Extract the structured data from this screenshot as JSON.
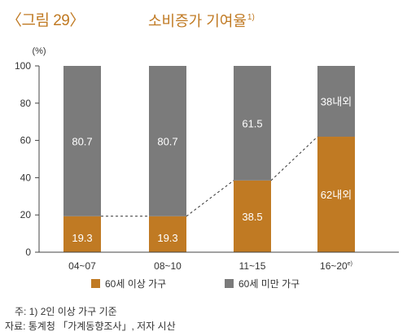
{
  "header": {
    "figure_label": "〈그림 29〉",
    "title": "소비증가 기여율",
    "title_sup": "1)"
  },
  "chart_data": {
    "type": "bar",
    "stacked": true,
    "categories": [
      "04~07",
      "08~10",
      "11~15",
      "16~20"
    ],
    "category_sup": [
      "",
      "",
      "",
      "e)"
    ],
    "unit_label": "(%)",
    "ylim": [
      0,
      100
    ],
    "yticks": [
      0,
      20,
      40,
      60,
      80,
      100
    ],
    "grid": false,
    "series": [
      {
        "name": "60세 이상 가구",
        "values": [
          19.3,
          19.3,
          38.5,
          62
        ],
        "labels": [
          "19.3",
          "19.3",
          "38.5",
          "62내외"
        ],
        "color": "#c07a23"
      },
      {
        "name": "60세 미만 가구",
        "values": [
          80.7,
          80.7,
          61.5,
          38
        ],
        "labels": [
          "80.7",
          "80.7",
          "61.5",
          "38내외"
        ],
        "color": "#7b7b7b"
      }
    ],
    "legend_position": "bottom",
    "connector": "dashed line linking tops of 60세 이상 가구 segments"
  },
  "notes": [
    "주: 1) 2인 이상 가구 기준",
    "자료: 통계청 「가계동향조사」, 저자 시산"
  ],
  "colors": {
    "accent": "#c07a23",
    "gray": "#7b7b7b",
    "axis": "#444444"
  }
}
